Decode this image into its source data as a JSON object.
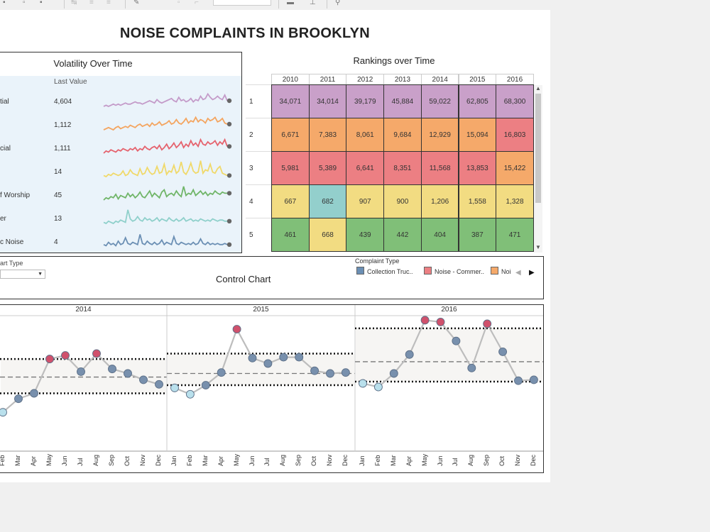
{
  "dashboard": {
    "title": "NOISE COMPLAINTS IN BROOKLYN"
  },
  "volatility": {
    "title": "Volatility Over Time",
    "column_header": "Last Value",
    "rows": [
      {
        "name": "tial",
        "value": "4,604",
        "color": "#c49bc9"
      },
      {
        "name": "",
        "value": "1,112",
        "color": "#f4a560"
      },
      {
        "name": "cial",
        "value": "1,111",
        "color": "#e5636e"
      },
      {
        "name": "",
        "value": "14",
        "color": "#f0d96a"
      },
      {
        "name": "f Worship",
        "value": "45",
        "color": "#70b568"
      },
      {
        "name": "er",
        "value": "13",
        "color": "#8fd0cb"
      },
      {
        "name": "c Noise",
        "value": "4",
        "color": "#6b8fb4"
      }
    ]
  },
  "rankings": {
    "title": "Rankings over Time",
    "years": [
      "2010",
      "2011",
      "2012",
      "2013",
      "2014",
      "2015",
      "2016"
    ],
    "ranks": [
      "1",
      "2",
      "3",
      "4",
      "5"
    ],
    "rows": [
      [
        {
          "v": "34,071",
          "c": "#c9a0c9"
        },
        {
          "v": "34,014",
          "c": "#c9a0c9"
        },
        {
          "v": "39,179",
          "c": "#c9a0c9"
        },
        {
          "v": "45,884",
          "c": "#c9a0c9"
        },
        {
          "v": "59,022",
          "c": "#c9a0c9"
        },
        {
          "v": "62,805",
          "c": "#c9a0c9"
        },
        {
          "v": "68,300",
          "c": "#c9a0c9"
        }
      ],
      [
        {
          "v": "6,671",
          "c": "#f5a96a"
        },
        {
          "v": "7,383",
          "c": "#f5a96a"
        },
        {
          "v": "8,061",
          "c": "#f5a96a"
        },
        {
          "v": "9,684",
          "c": "#f5a96a"
        },
        {
          "v": "12,929",
          "c": "#f5a96a"
        },
        {
          "v": "15,094",
          "c": "#f5a96a"
        },
        {
          "v": "16,803",
          "c": "#ec7f83"
        }
      ],
      [
        {
          "v": "5,981",
          "c": "#ec7f83"
        },
        {
          "v": "5,389",
          "c": "#ec7f83"
        },
        {
          "v": "6,641",
          "c": "#ec7f83"
        },
        {
          "v": "8,351",
          "c": "#ec7f83"
        },
        {
          "v": "11,568",
          "c": "#ec7f83"
        },
        {
          "v": "13,853",
          "c": "#ec7f83"
        },
        {
          "v": "15,422",
          "c": "#f5a96a"
        }
      ],
      [
        {
          "v": "667",
          "c": "#f2dc82"
        },
        {
          "v": "682",
          "c": "#93cfcc"
        },
        {
          "v": "907",
          "c": "#f2dc82"
        },
        {
          "v": "900",
          "c": "#f2dc82"
        },
        {
          "v": "1,206",
          "c": "#f2dc82"
        },
        {
          "v": "1,558",
          "c": "#f2dc82"
        },
        {
          "v": "1,328",
          "c": "#f2dc82"
        }
      ],
      [
        {
          "v": "461",
          "c": "#80bf78"
        },
        {
          "v": "668",
          "c": "#f2dc82"
        },
        {
          "v": "439",
          "c": "#80bf78"
        },
        {
          "v": "442",
          "c": "#80bf78"
        },
        {
          "v": "404",
          "c": "#80bf78"
        },
        {
          "v": "387",
          "c": "#80bf78"
        },
        {
          "v": "471",
          "c": "#80bf78"
        }
      ]
    ]
  },
  "control": {
    "title": "Control Chart",
    "chart_type_label": "art Type",
    "legend_title": "Complaint Type",
    "legend": [
      {
        "label": "Collection Truc..",
        "color": "#6b8fb4"
      },
      {
        "label": "Noise - Commer..",
        "color": "#ec7f83"
      },
      {
        "label": "Noi",
        "color": "#f5a96a"
      }
    ]
  },
  "chart_data": {
    "type": "line",
    "title": "Control Chart",
    "panels": [
      {
        "year": "2014",
        "months": [
          "Feb",
          "Mar",
          "Apr",
          "May",
          "Jun",
          "Jul",
          "Aug",
          "Sep",
          "Oct",
          "Nov",
          "Dec"
        ],
        "values": [
          43,
          58,
          64,
          102,
          106,
          88,
          108,
          91,
          86,
          79,
          74
        ],
        "status": [
          "low",
          "normal",
          "normal",
          "high",
          "high",
          "normal",
          "high",
          "normal",
          "normal",
          "normal",
          "normal"
        ],
        "upper": 102,
        "center": 82,
        "lower": 64
      },
      {
        "year": "2015",
        "months": [
          "Jan",
          "Feb",
          "Mar",
          "Apr",
          "May",
          "Jun",
          "Jul",
          "Aug",
          "Sep",
          "Oct",
          "Nov",
          "Dec"
        ],
        "values": [
          70,
          63,
          73,
          87,
          135,
          103,
          97,
          104,
          104,
          89,
          86,
          87
        ],
        "status": [
          "low",
          "low",
          "normal",
          "normal",
          "high",
          "normal",
          "normal",
          "normal",
          "normal",
          "normal",
          "normal",
          "normal"
        ],
        "upper": 108,
        "center": 86,
        "lower": 73
      },
      {
        "year": "2016",
        "months": [
          "Jan",
          "Feb",
          "Mar",
          "Apr",
          "May",
          "Jun",
          "Jul",
          "Aug",
          "Sep",
          "Oct",
          "Nov",
          "Dec"
        ],
        "values": [
          75,
          71,
          86,
          107,
          145,
          143,
          122,
          92,
          141,
          110,
          78,
          79
        ],
        "status": [
          "low",
          "low",
          "normal",
          "normal",
          "high",
          "high",
          "normal",
          "normal",
          "high",
          "normal",
          "normal",
          "normal"
        ],
        "upper": 136,
        "center": 99,
        "lower": 77
      }
    ],
    "status_colors": {
      "low": "#b9e0ec",
      "normal": "#7890ad",
      "high": "#d0516c"
    }
  }
}
